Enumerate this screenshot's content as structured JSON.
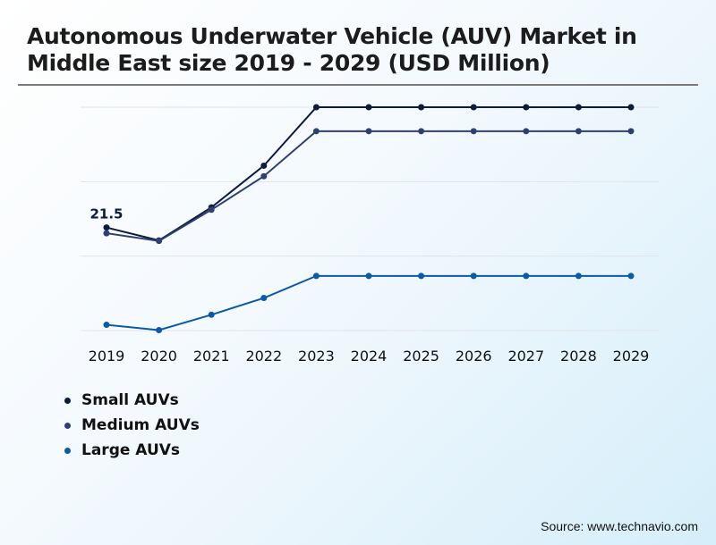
{
  "title_line1": "Autonomous Underwater Vehicle (AUV) Market in",
  "title_line2": "Middle East size 2019 - 2029 (USD Million)",
  "source": "Source: www.technavio.com",
  "chart_data": {
    "type": "line",
    "title": "Autonomous Underwater Vehicle (AUV) Market in Middle East size 2019 - 2029 (USD Million)",
    "categories": [
      "2019",
      "2020",
      "2021",
      "2022",
      "2023",
      "2024",
      "2025",
      "2026",
      "2027",
      "2028",
      "2029"
    ],
    "ylim": [
      0,
      46.6
    ],
    "grid": true,
    "legend_position": "bottom-left",
    "series": [
      {
        "name": "Small AUVs",
        "color": "#0d1b3e",
        "values": [
          21.5,
          18.8,
          25.7,
          34.4,
          46.6,
          46.6,
          46.6,
          46.6,
          46.6,
          46.6,
          46.6
        ]
      },
      {
        "name": "Medium AUVs",
        "color": "#2f4070",
        "values": [
          20.3,
          18.7,
          25.2,
          32.2,
          41.6,
          41.6,
          41.6,
          41.6,
          41.6,
          41.6,
          41.6
        ]
      },
      {
        "name": "Large AUVs",
        "color": "#0b5aa6",
        "values": [
          1.2,
          0.1,
          3.3,
          6.8,
          11.4,
          11.4,
          11.4,
          11.4,
          11.4,
          11.4,
          11.4
        ]
      }
    ],
    "annotations": [
      {
        "series": "Small AUVs",
        "category": "2019",
        "text": "21.5"
      }
    ]
  }
}
